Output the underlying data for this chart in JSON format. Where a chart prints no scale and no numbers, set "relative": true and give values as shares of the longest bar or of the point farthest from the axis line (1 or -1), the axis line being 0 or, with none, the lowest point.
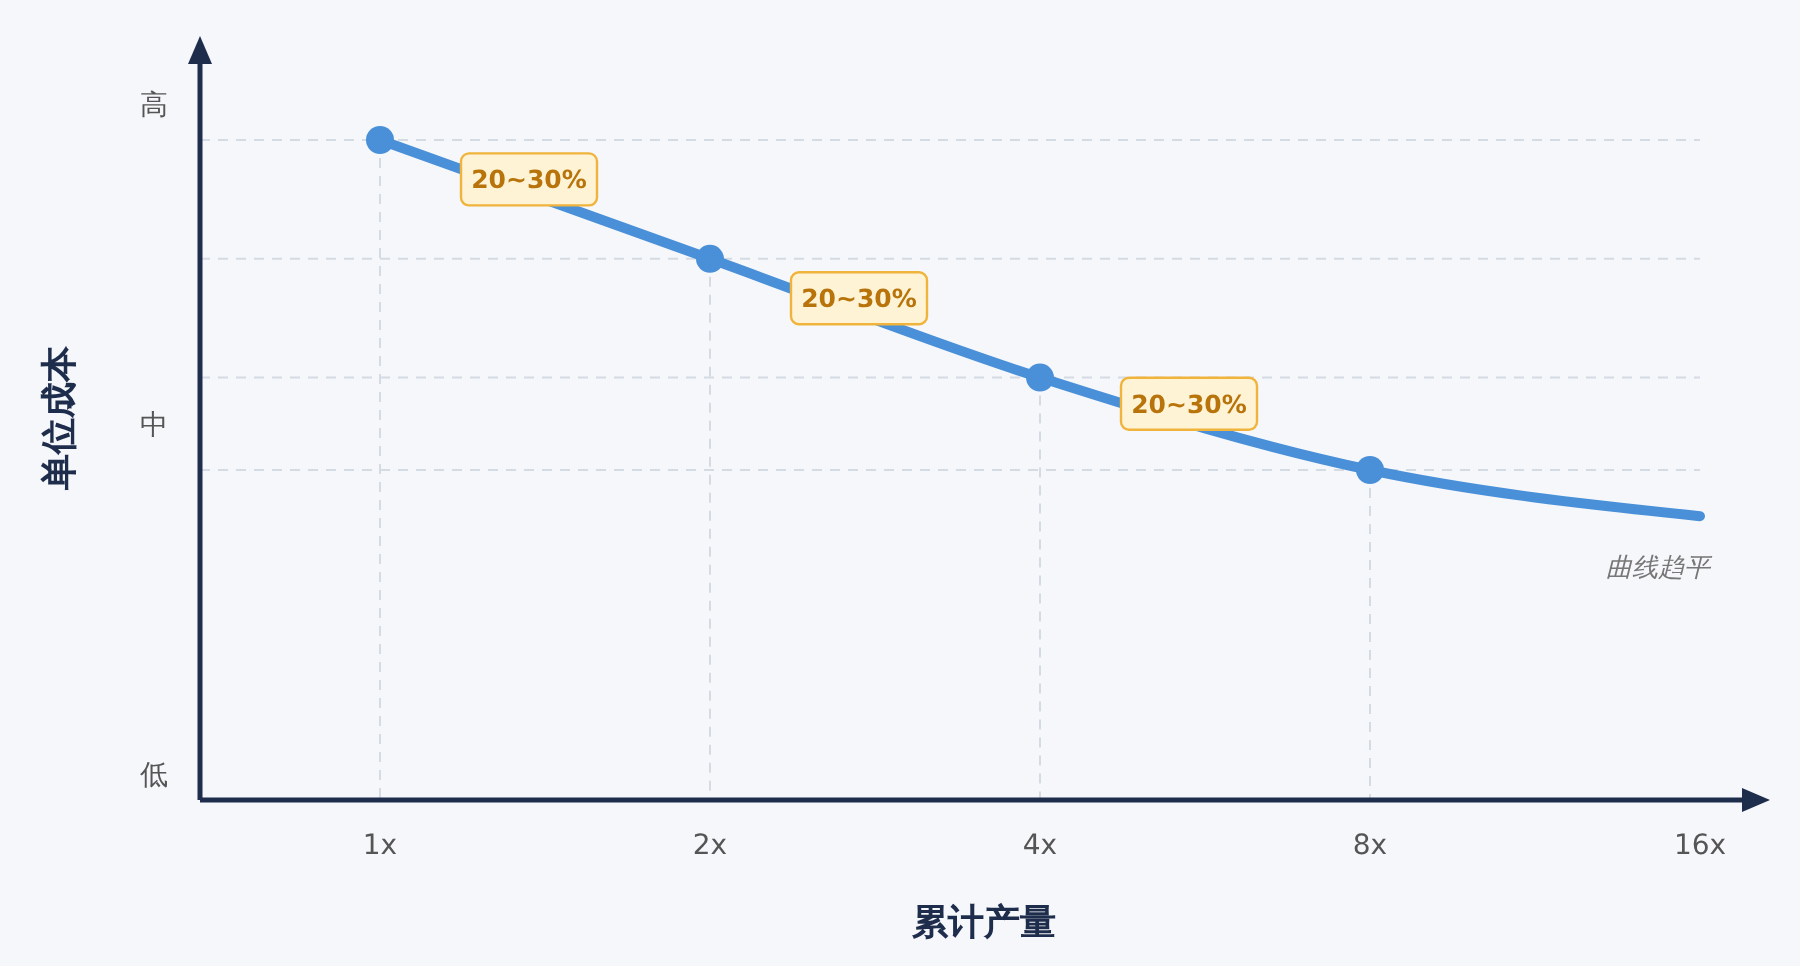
{
  "chart_data": {
    "type": "line",
    "relative": true,
    "xlabel": "累计产量",
    "ylabel": "单位成本",
    "categories": [
      "1x",
      "2x",
      "4x",
      "8x",
      "16x"
    ],
    "series": [
      {
        "color": "#4a90d9",
        "marker": "none",
        "values": [
          1,
          0.82,
          0.64,
          0.5,
          0.43
        ]
      },
      {
        "type": "scatter",
        "color": "#4a90d9",
        "marker": "circle",
        "values": [
          1,
          0.82,
          0.64,
          0.5,
          null
        ]
      }
    ],
    "grid": true,
    "annotations": [
      "20~30%",
      "20~30%",
      "20~30%",
      "曲线趋平",
      "高",
      "中",
      "低"
    ]
  }
}
